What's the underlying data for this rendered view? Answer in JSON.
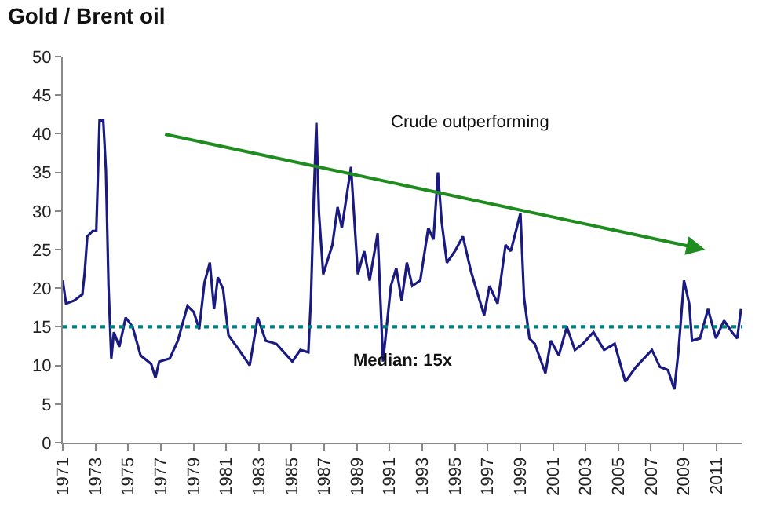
{
  "chart_data": {
    "type": "line",
    "title": "Gold / Brent oil",
    "annotations": [
      "Crude outperforming"
    ],
    "series": [
      {
        "color": "#1a1a80",
        "x": [
          1971.0,
          1971.2,
          1971.7,
          1972.2,
          1972.34,
          1972.5,
          1972.83,
          1973.05,
          1973.25,
          1973.48,
          1973.64,
          1973.8,
          1973.97,
          1974.13,
          1974.46,
          1974.85,
          1975.27,
          1975.76,
          1976.41,
          1976.67,
          1976.9,
          1977.55,
          1978.04,
          1978.63,
          1979.02,
          1979.35,
          1979.67,
          1980.0,
          1980.26,
          1980.49,
          1980.81,
          1981.14,
          1981.79,
          1982.44,
          1982.93,
          1983.42,
          1984.07,
          1985.05,
          1985.54,
          1986.03,
          1986.19,
          1986.36,
          1986.52,
          1986.68,
          1986.94,
          1987.5,
          1987.82,
          1988.08,
          1988.64,
          1989.06,
          1989.45,
          1989.78,
          1990.27,
          1990.6,
          1991.08,
          1991.41,
          1991.74,
          1992.06,
          1992.39,
          1992.88,
          1993.37,
          1993.69,
          1993.96,
          1994.19,
          1994.51,
          1995.0,
          1995.49,
          1995.98,
          1996.46,
          1996.79,
          1997.12,
          1997.61,
          1998.1,
          1998.42,
          1999.01,
          1999.23,
          1999.56,
          1999.89,
          2000.54,
          2000.87,
          2001.36,
          2001.85,
          2002.34,
          2002.83,
          2003.48,
          2004.13,
          2004.78,
          2005.43,
          2006.08,
          2006.74,
          2007.06,
          2007.55,
          2008.04,
          2008.43,
          2008.69,
          2009.02,
          2009.34,
          2009.51,
          2010.0,
          2010.49,
          2010.98,
          2011.47,
          2011.96,
          2012.28,
          2012.51
        ],
        "values": [
          21.0,
          18.0,
          18.4,
          19.2,
          22.0,
          26.7,
          27.4,
          27.4,
          41.7,
          41.7,
          35.3,
          20.3,
          10.9,
          14.3,
          12.4,
          16.2,
          15.0,
          11.3,
          10.2,
          8.4,
          10.5,
          10.9,
          13.2,
          17.7,
          16.9,
          14.7,
          20.7,
          23.3,
          17.3,
          21.4,
          19.9,
          13.9,
          12.0,
          10.0,
          16.2,
          13.2,
          12.8,
          10.5,
          12.0,
          11.7,
          18.8,
          31.6,
          41.4,
          29.7,
          21.8,
          25.6,
          30.5,
          27.8,
          35.7,
          21.8,
          24.8,
          21.0,
          27.1,
          10.5,
          20.3,
          22.6,
          18.4,
          23.3,
          20.3,
          21.0,
          27.8,
          26.3,
          35.0,
          28.6,
          23.3,
          24.8,
          26.7,
          22.2,
          18.8,
          16.5,
          20.3,
          18.0,
          25.6,
          24.8,
          29.7,
          18.8,
          13.5,
          12.8,
          9.0,
          13.2,
          11.3,
          15.0,
          12.0,
          12.8,
          14.3,
          12.0,
          12.8,
          7.9,
          9.8,
          11.3,
          12.0,
          9.8,
          9.4,
          6.9,
          12.0,
          21.0,
          18.0,
          13.2,
          13.5,
          17.3,
          13.5,
          15.8,
          14.3,
          13.5,
          17.3
        ]
      }
    ],
    "ref_lines": [
      {
        "axis": "y",
        "value": 15,
        "label": "Median: 15x",
        "color": "#008080",
        "line_style": "dotted"
      }
    ],
    "xlim": [
      1971,
      2012.6
    ],
    "xticks": [
      1971,
      1973,
      1975,
      1977,
      1979,
      1981,
      1983,
      1985,
      1987,
      1989,
      1991,
      1993,
      1995,
      1997,
      1999,
      2001,
      2003,
      2005,
      2007,
      2009,
      2011
    ],
    "ylim": [
      0,
      50
    ],
    "yticks": [
      0,
      5,
      10,
      15,
      20,
      25,
      30,
      35,
      40,
      45,
      50
    ],
    "marker": "none",
    "line_style": "solid"
  }
}
